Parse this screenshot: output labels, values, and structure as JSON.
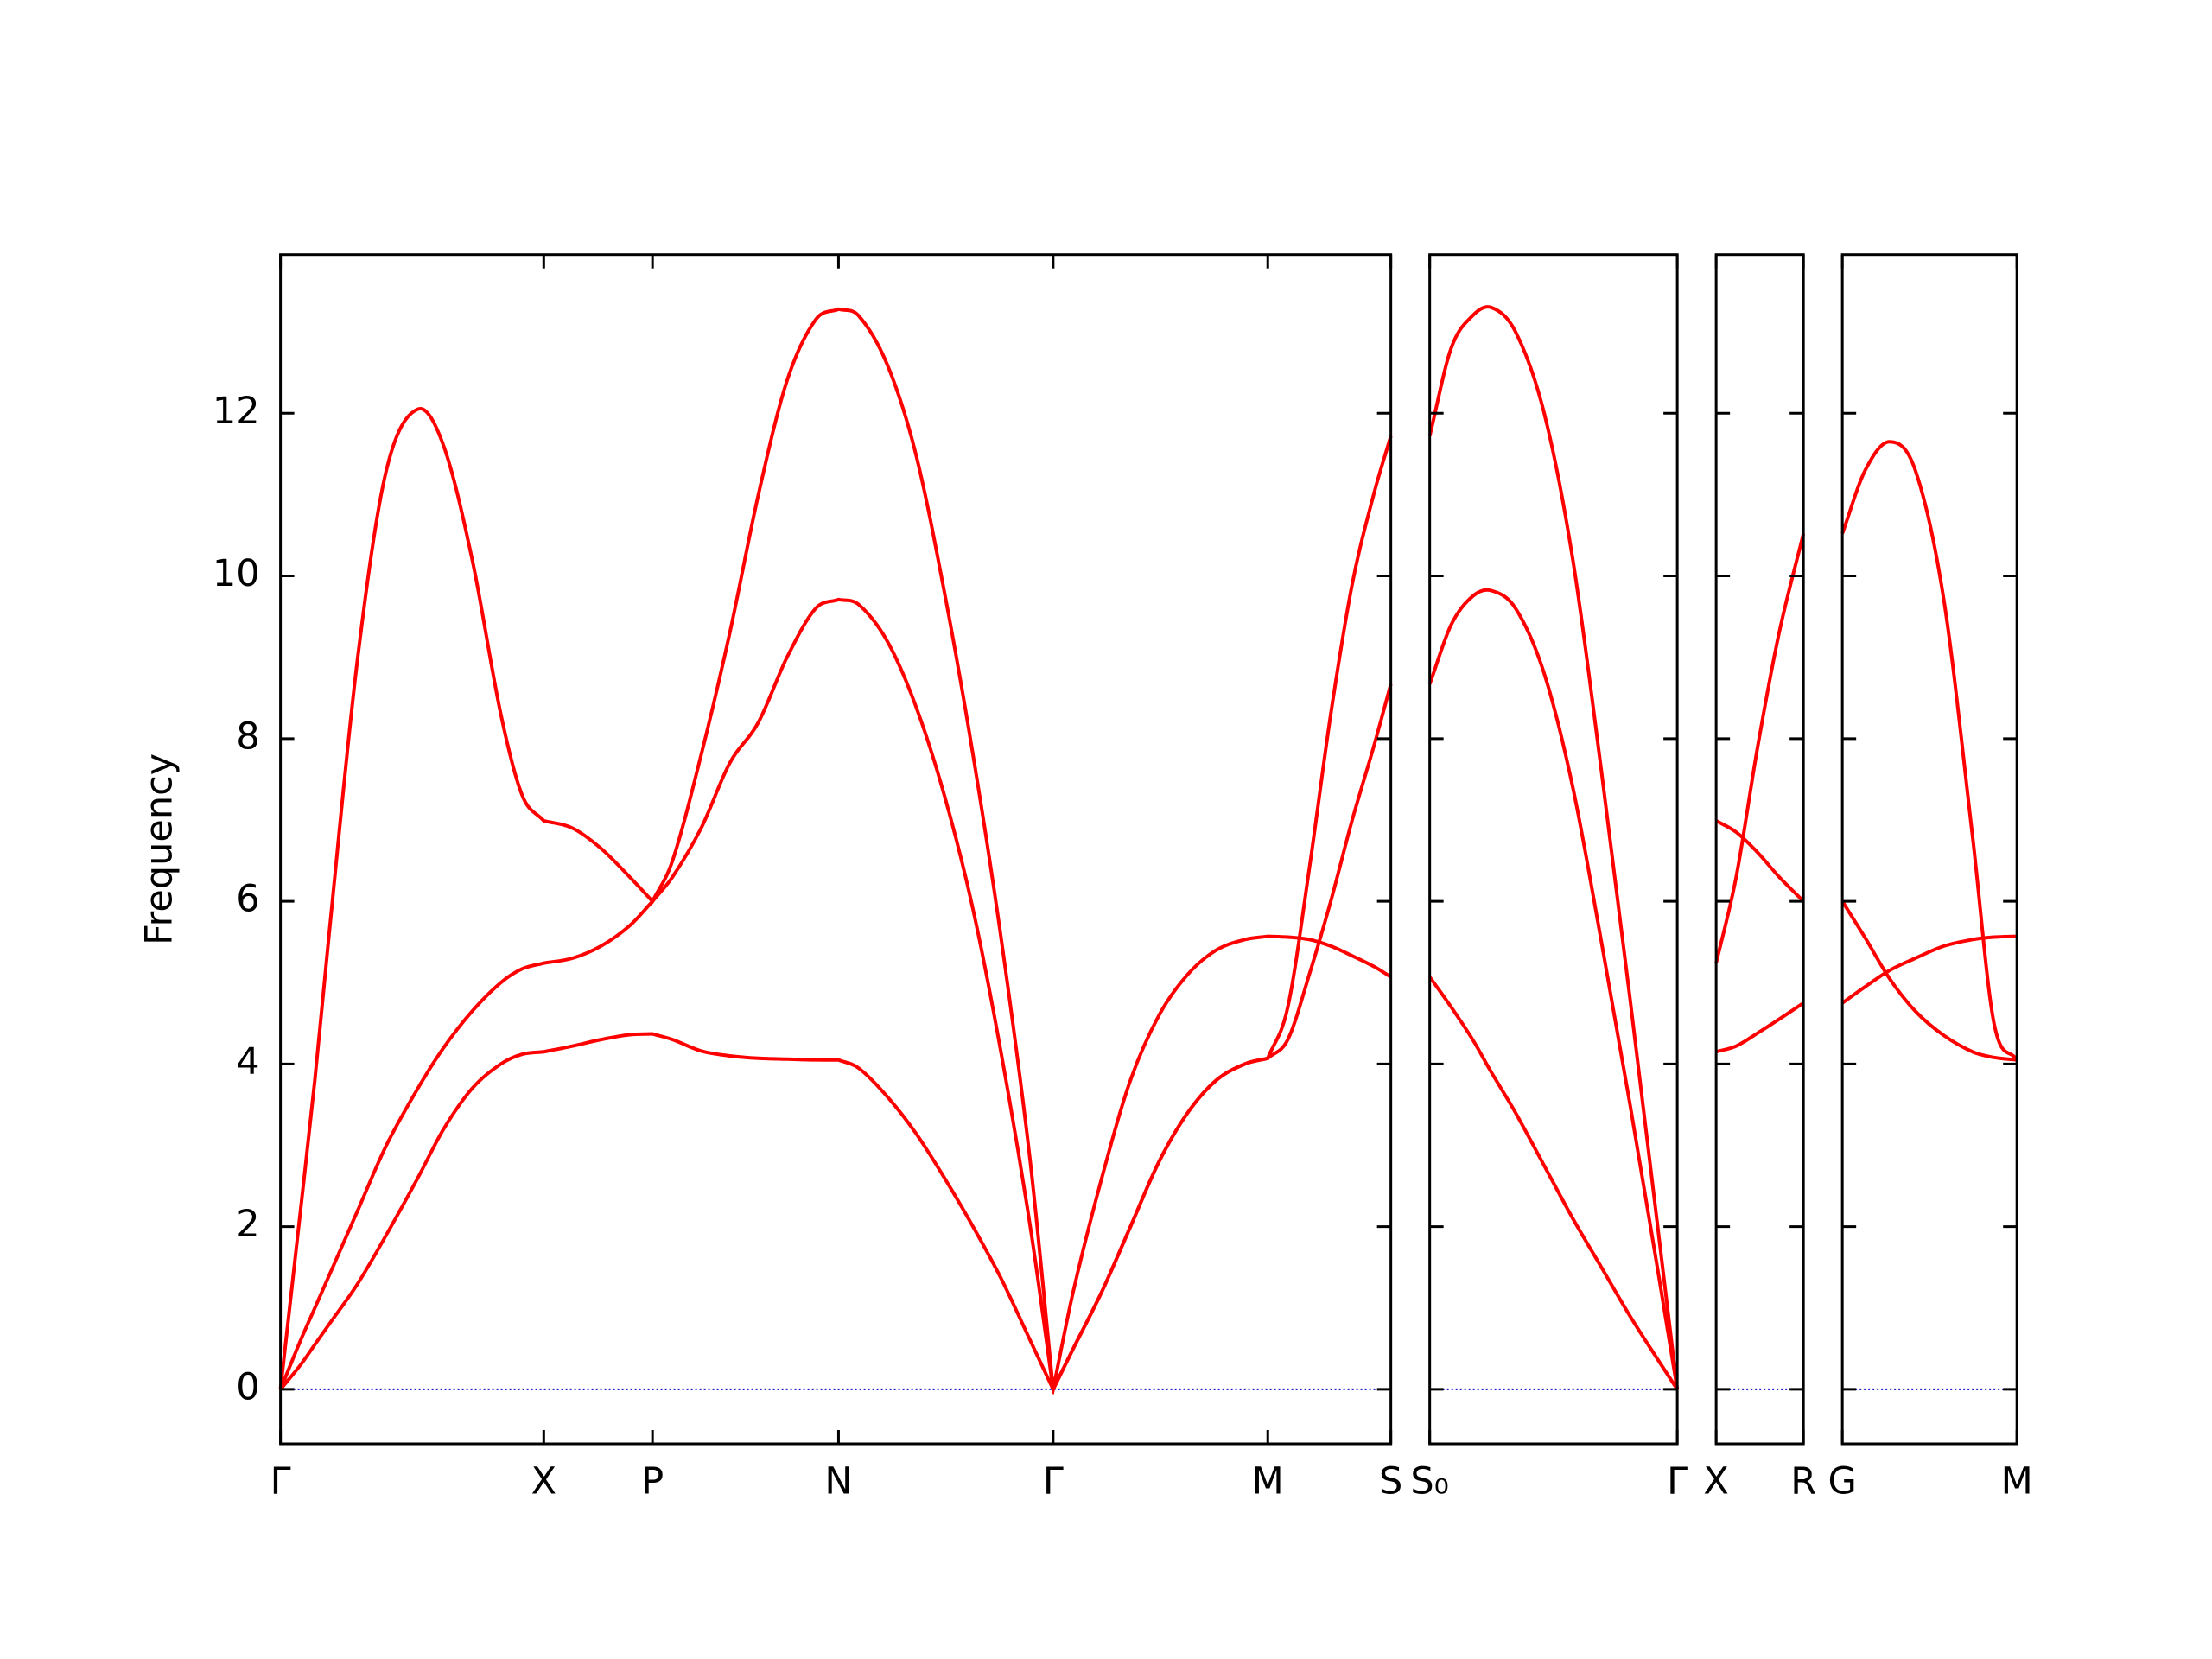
{
  "chart_data": [
    {
      "type": "line",
      "y_label": "Frequency",
      "xlim": [
        0,
        7.76
      ],
      "ylim": [
        -0.67,
        13.95
      ],
      "yticks": [
        0,
        2,
        4,
        6,
        8,
        10,
        12
      ],
      "show_ytick_labels": true,
      "xticks": [
        {
          "value": 0,
          "label": "Γ"
        },
        {
          "value": 1.84,
          "label": "X"
        },
        {
          "value": 2.6,
          "label": "P"
        },
        {
          "value": 3.9,
          "label": "N"
        },
        {
          "value": 5.4,
          "label": "Γ"
        },
        {
          "value": 6.9,
          "label": "M"
        },
        {
          "value": 7.76,
          "label": "S"
        }
      ],
      "hline": 0,
      "hline_color": "#0000cc",
      "x": [
        0,
        0.14,
        0.24,
        0.34,
        0.54,
        0.74,
        0.96,
        1.14,
        1.34,
        1.54,
        1.69,
        1.84,
        2.04,
        2.24,
        2.44,
        2.6,
        2.74,
        2.94,
        3.14,
        3.34,
        3.54,
        3.74,
        3.9,
        4.04,
        4.24,
        4.44,
        4.64,
        4.84,
        5.04,
        5.24,
        5.4,
        5.54,
        5.74,
        5.94,
        6.14,
        6.34,
        6.54,
        6.74,
        6.9,
        7.04,
        7.19,
        7.34,
        7.49,
        7.64,
        7.76
      ],
      "series": [
        {
          "color": "#ff0000",
          "values": [
            0,
            2.2,
            3.8,
            5.6,
            9.0,
            11.3,
            12.05,
            11.6,
            10.2,
            8.3,
            7.3,
            6.99,
            6.9,
            6.65,
            6.3,
            6.0,
            6.5,
            7.8,
            9.3,
            11.0,
            12.4,
            13.15,
            13.28,
            13.2,
            12.6,
            11.5,
            9.8,
            7.8,
            5.5,
            2.8,
            0,
            0.5,
            1.2,
            2.0,
            2.8,
            3.4,
            3.8,
            4.0,
            4.07,
            4.7,
            6.4,
            8.3,
            9.9,
            11.0,
            11.72
          ]
        },
        {
          "color": "#ff0000",
          "values": [
            0,
            0.6,
            1.0,
            1.4,
            2.2,
            3.0,
            3.7,
            4.2,
            4.65,
            5.0,
            5.17,
            5.24,
            5.3,
            5.45,
            5.7,
            6.0,
            6.3,
            6.9,
            7.7,
            8.2,
            9.0,
            9.6,
            9.71,
            9.65,
            9.2,
            8.4,
            7.3,
            5.9,
            4.1,
            2.0,
            0,
            0.5,
            1.2,
            2.0,
            2.8,
            3.4,
            3.8,
            4.0,
            4.07,
            4.3,
            5.1,
            6.0,
            7.0,
            7.9,
            8.67
          ]
        },
        {
          "color": "#ff0000",
          "values": [
            0,
            0.3,
            0.55,
            0.8,
            1.3,
            1.9,
            2.6,
            3.2,
            3.7,
            4.0,
            4.12,
            4.15,
            4.22,
            4.3,
            4.36,
            4.37,
            4.3,
            4.16,
            4.1,
            4.07,
            4.06,
            4.05,
            4.05,
            3.95,
            3.6,
            3.15,
            2.6,
            2.0,
            1.35,
            0.6,
            0,
            1.2,
            2.6,
            3.8,
            4.6,
            5.1,
            5.4,
            5.53,
            5.57,
            5.56,
            5.53,
            5.45,
            5.33,
            5.2,
            5.07
          ]
        }
      ]
    },
    {
      "type": "line",
      "xlim": [
        7.76,
        9.49
      ],
      "ylim": [
        -0.67,
        13.95
      ],
      "yticks": [
        0,
        2,
        4,
        6,
        8,
        10,
        12
      ],
      "show_ytick_labels": false,
      "xticks": [
        {
          "value": 7.76,
          "label": "S₀"
        },
        {
          "value": 9.49,
          "label": "Γ"
        }
      ],
      "hline": 0,
      "hline_color": "#0000cc",
      "x": [
        7.76,
        7.91,
        8.06,
        8.19,
        8.36,
        8.56,
        8.76,
        8.96,
        9.16,
        9.36,
        9.49
      ],
      "series": [
        {
          "color": "#ff0000",
          "values": [
            11.72,
            12.8,
            13.2,
            13.3,
            13.0,
            12.0,
            10.2,
            7.6,
            4.8,
            1.9,
            0
          ]
        },
        {
          "color": "#ff0000",
          "values": [
            8.67,
            9.4,
            9.75,
            9.82,
            9.6,
            8.8,
            7.4,
            5.5,
            3.5,
            1.4,
            0
          ]
        },
        {
          "color": "#ff0000",
          "values": [
            5.07,
            4.7,
            4.3,
            3.9,
            3.4,
            2.75,
            2.1,
            1.5,
            0.9,
            0.35,
            0
          ]
        }
      ]
    },
    {
      "type": "line",
      "xlim": [
        9.49,
        10.1
      ],
      "ylim": [
        -0.67,
        13.95
      ],
      "yticks": [
        0,
        2,
        4,
        6,
        8,
        10,
        12
      ],
      "show_ytick_labels": false,
      "xticks": [
        {
          "value": 9.49,
          "label": "X"
        },
        {
          "value": 10.1,
          "label": "R"
        }
      ],
      "hline": 0,
      "hline_color": "#0000cc",
      "x": [
        9.49,
        9.63,
        9.78,
        9.93,
        10.1
      ],
      "series": [
        {
          "color": "#ff0000",
          "values": [
            5.24,
            6.3,
            7.9,
            9.3,
            10.52
          ]
        },
        {
          "color": "#ff0000",
          "values": [
            6.99,
            6.85,
            6.6,
            6.3,
            6.0
          ]
        },
        {
          "color": "#ff0000",
          "values": [
            4.15,
            4.22,
            4.38,
            4.55,
            4.75
          ]
        }
      ]
    },
    {
      "type": "line",
      "xlim": [
        10.1,
        11.32
      ],
      "ylim": [
        -0.67,
        13.95
      ],
      "yticks": [
        0,
        2,
        4,
        6,
        8,
        10,
        12
      ],
      "show_ytick_labels": false,
      "xticks": [
        {
          "value": 10.1,
          "label": "G"
        },
        {
          "value": 11.32,
          "label": "M"
        }
      ],
      "hline": 0,
      "hline_color": "#0000cc",
      "x": [
        10.1,
        10.26,
        10.43,
        10.61,
        10.81,
        11.01,
        11.16,
        11.32
      ],
      "series": [
        {
          "color": "#ff0000",
          "values": [
            10.52,
            11.3,
            11.65,
            11.3,
            9.7,
            6.8,
            4.5,
            4.05
          ]
        },
        {
          "color": "#ff0000",
          "values": [
            6.0,
            5.55,
            5.05,
            4.65,
            4.35,
            4.15,
            4.08,
            4.05
          ]
        },
        {
          "color": "#ff0000",
          "values": [
            4.75,
            4.95,
            5.15,
            5.3,
            5.45,
            5.53,
            5.56,
            5.57
          ]
        }
      ]
    }
  ]
}
